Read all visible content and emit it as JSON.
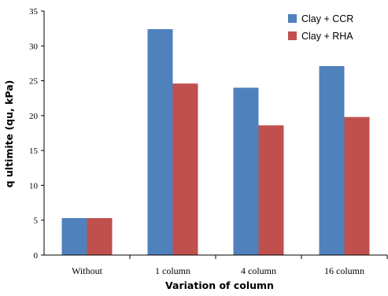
{
  "chart_data": {
    "type": "bar",
    "title": "",
    "xlabel": "Variation of column",
    "ylabel": "q ultimite (qu, kPa)",
    "categories": [
      "Without",
      "1 column",
      "4 column",
      "16 column"
    ],
    "series": [
      {
        "name": "Clay + CCR",
        "color": "#4f81bd",
        "values": [
          5.3,
          32.4,
          24.0,
          27.1
        ]
      },
      {
        "name": "Clay + RHA",
        "color": "#c0504d",
        "values": [
          5.3,
          24.6,
          18.6,
          19.8
        ]
      }
    ],
    "ylim": [
      0,
      35
    ],
    "yticks": [
      0,
      5,
      10,
      15,
      20,
      25,
      30,
      35
    ],
    "grid": false,
    "legend": "top-right"
  }
}
